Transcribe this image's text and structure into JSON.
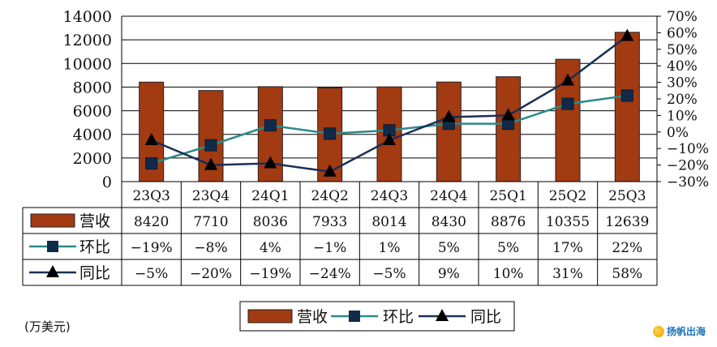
{
  "chart_data": {
    "type": "bar+line",
    "categories": [
      "23Q3",
      "23Q4",
      "24Q1",
      "24Q2",
      "24Q3",
      "24Q4",
      "25Q1",
      "25Q2",
      "25Q3"
    ],
    "bar_series": {
      "name": "营收",
      "values": [
        8420,
        7710,
        8036,
        7933,
        8014,
        8430,
        8876,
        10355,
        12639
      ],
      "color": "#a23a12"
    },
    "line_series": [
      {
        "name": "环比",
        "values": [
          -19,
          -8,
          4,
          -1,
          1,
          5,
          5,
          17,
          22
        ],
        "labels": [
          "−19%",
          "−8%",
          "4%",
          "−1%",
          "1%",
          "5%",
          "5%",
          "17%",
          "22%"
        ],
        "color": "#2a8a88",
        "marker": "square"
      },
      {
        "name": "同比",
        "values": [
          -5,
          -20,
          -19,
          -24,
          -5,
          9,
          10,
          31,
          58
        ],
        "labels": [
          "−5%",
          "−20%",
          "−19%",
          "−24%",
          "−5%",
          "9%",
          "10%",
          "31%",
          "58%"
        ],
        "color": "#1b2f55",
        "marker": "triangle"
      }
    ],
    "y_left": {
      "min": 0,
      "max": 14000,
      "ticks": [
        "0",
        "2000",
        "4000",
        "6000",
        "8000",
        "10000",
        "12000",
        "14000"
      ]
    },
    "y_right": {
      "min": -30,
      "max": 70,
      "ticks": [
        "−30%",
        "−20%",
        "−10%",
        "0%",
        "10%",
        "20%",
        "30%",
        "40%",
        "50%",
        "60%",
        "70%"
      ]
    },
    "bar_labels": [
      "8420",
      "7710",
      "8036",
      "7933",
      "8014",
      "8430",
      "8876",
      "10355",
      "12639"
    ],
    "legend": [
      "营收",
      "环比",
      "同比"
    ],
    "unit": "(万美元)",
    "grid": true
  },
  "watermark": "扬帆出海"
}
